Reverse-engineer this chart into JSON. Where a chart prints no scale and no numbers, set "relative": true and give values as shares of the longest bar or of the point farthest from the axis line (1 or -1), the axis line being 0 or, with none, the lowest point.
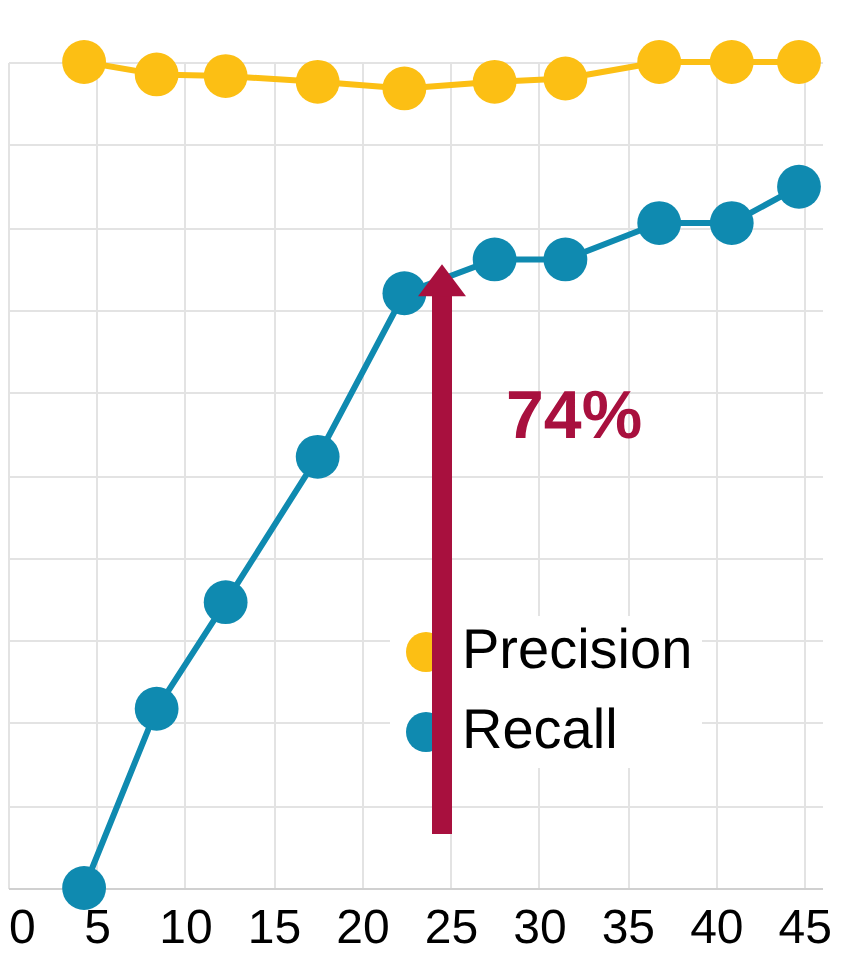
{
  "chart_data": {
    "type": "line",
    "relative": true,
    "xlim": [
      0,
      46
    ],
    "xticks": [
      0,
      5,
      10,
      15,
      20,
      25,
      30,
      35,
      40,
      45
    ],
    "x": [
      4.3,
      8.4,
      12.3,
      17.5,
      22.4,
      27.5,
      31.5,
      36.8,
      40.9,
      44.7
    ],
    "series": [
      {
        "name": "Precision",
        "color": "#fcbf14",
        "values": [
          1,
          0.985,
          0.983,
          0.976,
          0.968,
          0.976,
          0.98,
          1,
          1,
          1
        ]
      },
      {
        "name": "Recall",
        "color": "#0f8ab0",
        "values": [
          0,
          0.217,
          0.346,
          0.522,
          0.72,
          0.761,
          0.761,
          0.805,
          0.805,
          0.849
        ]
      }
    ],
    "annotations": [
      "74%"
    ],
    "grid": true,
    "legend": "bottom right",
    "marker": "circle",
    "line_style": "solid"
  }
}
